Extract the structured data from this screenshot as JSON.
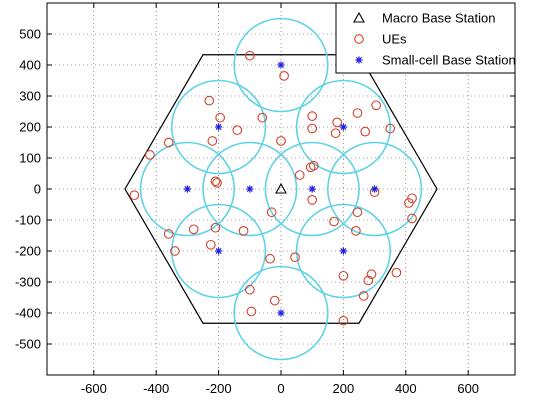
{
  "chart_data": {
    "type": "scatter",
    "title": "",
    "xlabel": "",
    "ylabel": "",
    "xlim": [
      -750,
      750
    ],
    "ylim": [
      -600,
      600
    ],
    "xticks": [
      -600,
      -400,
      -200,
      0,
      200,
      400,
      600
    ],
    "yticks": [
      -500,
      -400,
      -300,
      -200,
      -100,
      0,
      100,
      200,
      300,
      400,
      500
    ],
    "grid": true,
    "legend": {
      "position": "top-right"
    },
    "colors": {
      "circle": "#5fd3e6",
      "ue": "#d2432b",
      "small_cell": "#2020e0",
      "hexagon": "#000000"
    },
    "hexagon_radius": 500,
    "coverage_radius": 150,
    "series": [
      {
        "name": "Macro Base Station",
        "marker": "triangle",
        "points": [
          [
            0,
            0
          ]
        ]
      },
      {
        "name": "UEs",
        "marker": "circle",
        "points": [
          [
            -100,
            430
          ],
          [
            10,
            365
          ],
          [
            -230,
            285
          ],
          [
            -195,
            230
          ],
          [
            -60,
            230
          ],
          [
            -140,
            190
          ],
          [
            -220,
            155
          ],
          [
            0,
            155
          ],
          [
            100,
            235
          ],
          [
            180,
            215
          ],
          [
            245,
            245
          ],
          [
            305,
            270
          ],
          [
            100,
            195
          ],
          [
            175,
            180
          ],
          [
            270,
            185
          ],
          [
            350,
            195
          ],
          [
            -360,
            150
          ],
          [
            -420,
            110
          ],
          [
            -210,
            25
          ],
          [
            -205,
            20
          ],
          [
            60,
            45
          ],
          [
            105,
            75
          ],
          [
            95,
            70
          ],
          [
            100,
            -35
          ],
          [
            -470,
            -20
          ],
          [
            300,
            -10
          ],
          [
            420,
            -30
          ],
          [
            410,
            -45
          ],
          [
            -120,
            -135
          ],
          [
            -210,
            -125
          ],
          [
            -280,
            -130
          ],
          [
            -360,
            -145
          ],
          [
            -340,
            -200
          ],
          [
            -225,
            -180
          ],
          [
            -30,
            -75
          ],
          [
            170,
            -105
          ],
          [
            245,
            -75
          ],
          [
            420,
            -95
          ],
          [
            240,
            -135
          ],
          [
            -35,
            -225
          ],
          [
            45,
            -220
          ],
          [
            200,
            -280
          ],
          [
            290,
            -275
          ],
          [
            280,
            -295
          ],
          [
            370,
            -270
          ],
          [
            -20,
            -360
          ],
          [
            -100,
            -325
          ],
          [
            -95,
            -395
          ],
          [
            265,
            -345
          ],
          [
            200,
            -425
          ]
        ]
      },
      {
        "name": "Small-cell Base Station",
        "marker": "asterisk",
        "points": [
          [
            0,
            400
          ],
          [
            -200,
            200
          ],
          [
            200,
            200
          ],
          [
            -300,
            0
          ],
          [
            -100,
            0
          ],
          [
            100,
            0
          ],
          [
            300,
            0
          ],
          [
            -200,
            -200
          ],
          [
            200,
            -200
          ],
          [
            0,
            -400
          ]
        ]
      }
    ]
  }
}
